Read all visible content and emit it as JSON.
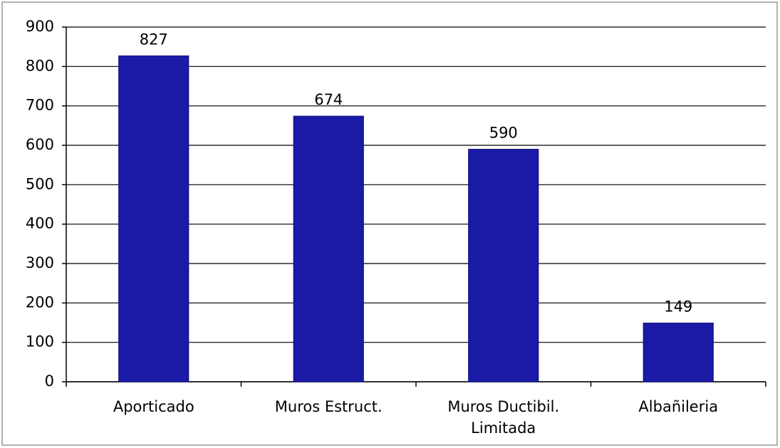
{
  "chart_data": {
    "type": "bar",
    "categories": [
      "Aporticado",
      "Muros Estruct.",
      "Muros Ductibil. Limitada",
      "Albañileria"
    ],
    "values": [
      827,
      674,
      590,
      149
    ],
    "color": "#1a1aa6",
    "ylim": [
      0,
      900
    ],
    "yticks": [
      0,
      100,
      200,
      300,
      400,
      500,
      600,
      700,
      800,
      900
    ],
    "grid": true
  }
}
